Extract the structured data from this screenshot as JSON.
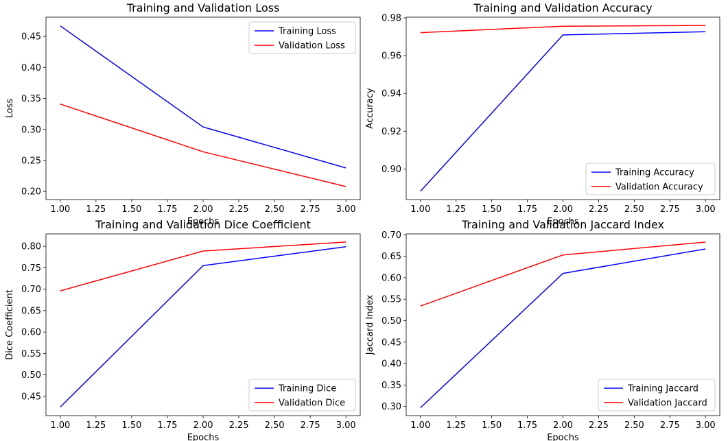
{
  "chart_data": [
    {
      "type": "line",
      "title": "Training and Validation Loss",
      "xlabel": "Epochs",
      "ylabel": "Loss",
      "xlim": [
        0.9,
        3.1
      ],
      "ylim": [
        0.187,
        0.481
      ],
      "xticks": [
        1.0,
        1.25,
        1.5,
        1.75,
        2.0,
        2.25,
        2.5,
        2.75,
        3.0
      ],
      "xtick_labels": [
        "1.00",
        "1.25",
        "1.50",
        "1.75",
        "2.00",
        "2.25",
        "2.50",
        "2.75",
        "3.00"
      ],
      "yticks": [
        0.2,
        0.25,
        0.3,
        0.35,
        0.4,
        0.45
      ],
      "ytick_labels": [
        "0.20",
        "0.25",
        "0.30",
        "0.35",
        "0.40",
        "0.45"
      ],
      "x": [
        1,
        2,
        3
      ],
      "legend": "upper-right",
      "series": [
        {
          "name": "Training Loss",
          "color": "#0000ff",
          "values": [
            0.467,
            0.304,
            0.238
          ]
        },
        {
          "name": "Validation Loss",
          "color": "#ff0000",
          "values": [
            0.341,
            0.264,
            0.208
          ]
        }
      ]
    },
    {
      "type": "line",
      "title": "Training and Validation Accuracy",
      "xlabel": "Epochs",
      "ylabel": "Accuracy",
      "xlim": [
        0.9,
        3.1
      ],
      "ylim": [
        0.8838,
        0.9804
      ],
      "xticks": [
        1.0,
        1.25,
        1.5,
        1.75,
        2.0,
        2.25,
        2.5,
        2.75,
        3.0
      ],
      "xtick_labels": [
        "1.00",
        "1.25",
        "1.50",
        "1.75",
        "2.00",
        "2.25",
        "2.50",
        "2.75",
        "3.00"
      ],
      "yticks": [
        0.9,
        0.92,
        0.94,
        0.96,
        0.98
      ],
      "ytick_labels": [
        "0.90",
        "0.92",
        "0.94",
        "0.96",
        "0.98"
      ],
      "x": [
        1,
        2,
        3
      ],
      "legend": "lower-right",
      "series": [
        {
          "name": "Training Accuracy",
          "color": "#0000ff",
          "values": [
            0.8882,
            0.971,
            0.9727
          ]
        },
        {
          "name": "Validation Accuracy",
          "color": "#ff0000",
          "values": [
            0.9722,
            0.9756,
            0.976
          ]
        }
      ]
    },
    {
      "type": "line",
      "title": "Training and Validation Dice Coefficient",
      "xlabel": "Epochs",
      "ylabel": "Dice Coefficient",
      "xlim": [
        0.9,
        3.1
      ],
      "ylim": [
        0.405,
        0.829
      ],
      "xticks": [
        1.0,
        1.25,
        1.5,
        1.75,
        2.0,
        2.25,
        2.5,
        2.75,
        3.0
      ],
      "xtick_labels": [
        "1.00",
        "1.25",
        "1.50",
        "1.75",
        "2.00",
        "2.25",
        "2.50",
        "2.75",
        "3.00"
      ],
      "yticks": [
        0.45,
        0.5,
        0.55,
        0.6,
        0.65,
        0.7,
        0.75,
        0.8
      ],
      "ytick_labels": [
        "0.45",
        "0.50",
        "0.55",
        "0.60",
        "0.65",
        "0.70",
        "0.75",
        "0.80"
      ],
      "x": [
        1,
        2,
        3
      ],
      "legend": "lower-right",
      "series": [
        {
          "name": "Training Dice",
          "color": "#0000ff",
          "values": [
            0.425,
            0.755,
            0.799
          ]
        },
        {
          "name": "Validation Dice",
          "color": "#ff0000",
          "values": [
            0.696,
            0.789,
            0.81
          ]
        }
      ]
    },
    {
      "type": "line",
      "title": "Training and Validation Jaccard Index",
      "xlabel": "Epochs",
      "ylabel": "Jaccard Index",
      "xlim": [
        0.9,
        3.1
      ],
      "ylim": [
        0.2787,
        0.7021
      ],
      "xticks": [
        1.0,
        1.25,
        1.5,
        1.75,
        2.0,
        2.25,
        2.5,
        2.75,
        3.0
      ],
      "xtick_labels": [
        "1.00",
        "1.25",
        "1.50",
        "1.75",
        "2.00",
        "2.25",
        "2.50",
        "2.75",
        "3.00"
      ],
      "yticks": [
        0.3,
        0.35,
        0.4,
        0.45,
        0.5,
        0.55,
        0.6,
        0.65,
        0.7
      ],
      "ytick_labels": [
        "0.30",
        "0.35",
        "0.40",
        "0.45",
        "0.50",
        "0.55",
        "0.60",
        "0.65",
        "0.70"
      ],
      "x": [
        1,
        2,
        3
      ],
      "legend": "lower-right",
      "series": [
        {
          "name": "Training Jaccard",
          "color": "#0000ff",
          "values": [
            0.297,
            0.61,
            0.667
          ]
        },
        {
          "name": "Validation Jaccard",
          "color": "#ff0000",
          "values": [
            0.534,
            0.653,
            0.683
          ]
        }
      ]
    }
  ]
}
